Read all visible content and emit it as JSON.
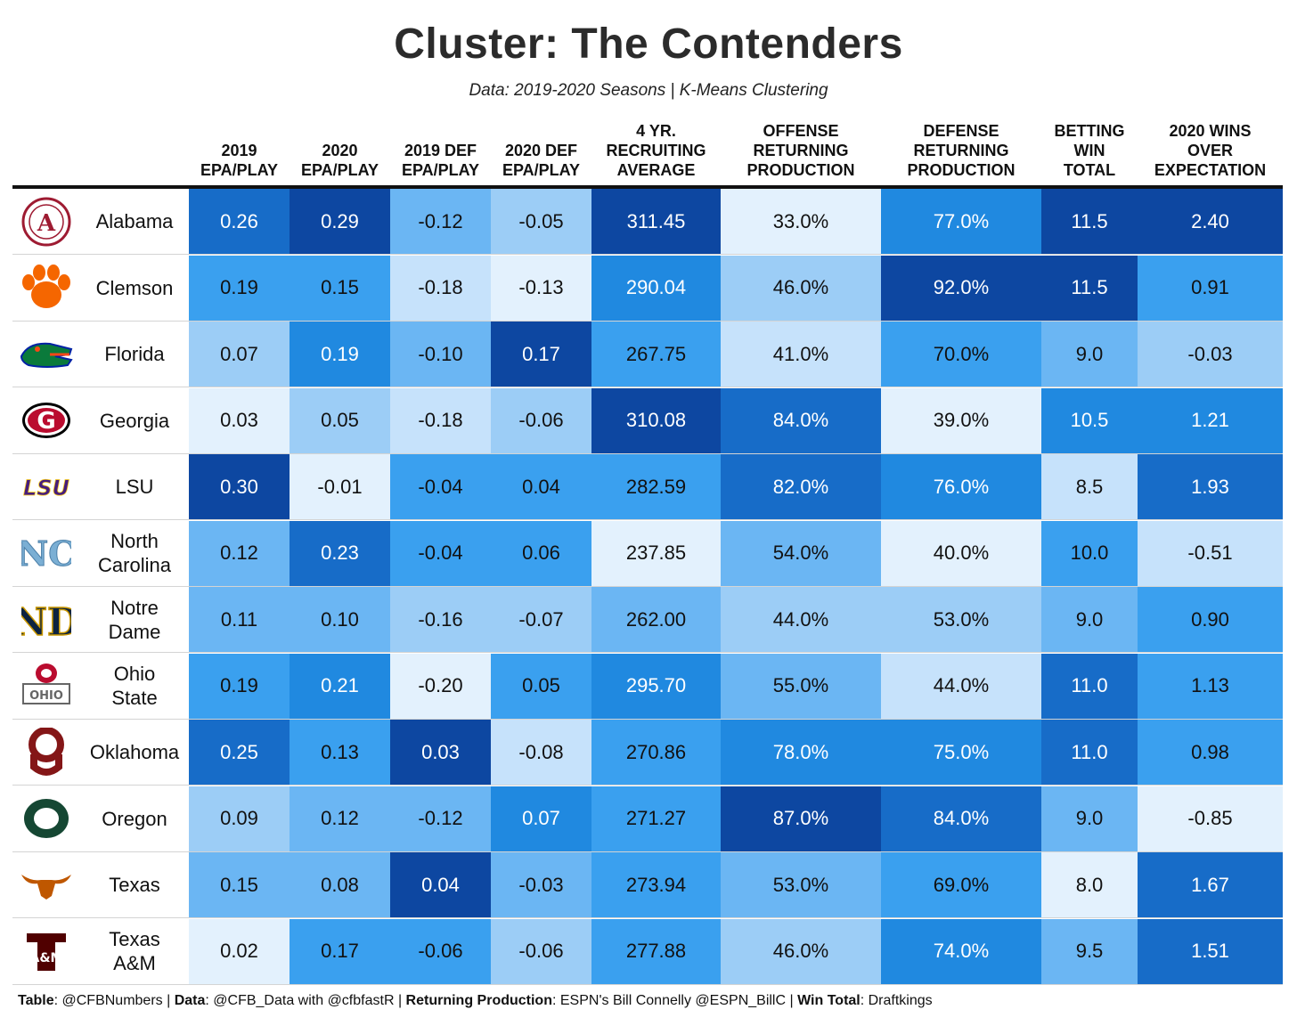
{
  "title": "Cluster: The Contenders",
  "subtitle": "Data: 2019-2020 Seasons | K-Means Clustering",
  "colors": {
    "lightest": "#e3f1fd",
    "light": "#c6e2fb",
    "light_mid": "#9ccdf6",
    "mid_light": "#6bb6f3",
    "mid": "#3aa0ef",
    "mid_dark": "#2089e0",
    "dark": "#176cc8",
    "darkest": "#0d47a1"
  },
  "chart_data": {
    "type": "table",
    "columns": [
      {
        "key": "epa19",
        "label": [
          "2019",
          "EPA/PLAY"
        ]
      },
      {
        "key": "epa20",
        "label": [
          "2020",
          "EPA/PLAY"
        ]
      },
      {
        "key": "def19",
        "label": [
          "2019 DEF",
          "EPA/PLAY"
        ]
      },
      {
        "key": "def20",
        "label": [
          "2020 DEF",
          "EPA/PLAY"
        ]
      },
      {
        "key": "recruit",
        "label": [
          "4 YR.",
          "RECRUITING",
          "AVERAGE"
        ]
      },
      {
        "key": "off_ret",
        "label": [
          "OFFENSE",
          "RETURNING",
          "PRODUCTION"
        ]
      },
      {
        "key": "def_ret",
        "label": [
          "DEFENSE",
          "RETURNING",
          "PRODUCTION"
        ]
      },
      {
        "key": "win_total",
        "label": [
          "BETTING",
          "WIN",
          "TOTAL"
        ]
      },
      {
        "key": "wins_over",
        "label": [
          "2020 WINS",
          "OVER",
          "EXPECTATION"
        ]
      }
    ],
    "rows": [
      {
        "team": [
          "Alabama"
        ],
        "logo": "alabama-a-logo",
        "values": [
          "0.26",
          "0.29",
          "-0.12",
          "-0.05",
          "311.45",
          "33.0%",
          "77.0%",
          "11.5",
          "2.40"
        ],
        "shade": [
          6,
          7,
          3,
          2,
          7,
          0,
          5,
          7,
          7
        ]
      },
      {
        "team": [
          "Clemson"
        ],
        "logo": "clemson-paw-logo",
        "values": [
          "0.19",
          "0.15",
          "-0.18",
          "-0.13",
          "290.04",
          "46.0%",
          "92.0%",
          "11.5",
          "0.91"
        ],
        "shade": [
          4,
          4,
          1,
          0,
          5,
          2,
          7,
          7,
          4
        ]
      },
      {
        "team": [
          "Florida"
        ],
        "logo": "florida-gator-logo",
        "values": [
          "0.07",
          "0.19",
          "-0.10",
          "0.17",
          "267.75",
          "41.0%",
          "70.0%",
          "9.0",
          "-0.03"
        ],
        "shade": [
          2,
          5,
          3,
          7,
          4,
          1,
          4,
          3,
          2
        ]
      },
      {
        "team": [
          "Georgia"
        ],
        "logo": "georgia-g-logo",
        "values": [
          "0.03",
          "0.05",
          "-0.18",
          "-0.06",
          "310.08",
          "84.0%",
          "39.0%",
          "10.5",
          "1.21"
        ],
        "shade": [
          0,
          2,
          1,
          2,
          7,
          6,
          0,
          5,
          5
        ]
      },
      {
        "team": [
          "LSU"
        ],
        "logo": "lsu-wordmark-logo",
        "values": [
          "0.30",
          "-0.01",
          "-0.04",
          "0.04",
          "282.59",
          "82.0%",
          "76.0%",
          "8.5",
          "1.93"
        ],
        "shade": [
          7,
          0,
          4,
          4,
          4,
          6,
          5,
          1,
          6
        ]
      },
      {
        "team": [
          "North",
          "Carolina"
        ],
        "logo": "unc-nc-logo",
        "values": [
          "0.12",
          "0.23",
          "-0.04",
          "0.06",
          "237.85",
          "54.0%",
          "40.0%",
          "10.0",
          "-0.51"
        ],
        "shade": [
          3,
          6,
          4,
          4,
          0,
          3,
          0,
          4,
          1
        ]
      },
      {
        "team": [
          "Notre",
          "Dame"
        ],
        "logo": "notre-dame-nd-logo",
        "values": [
          "0.11",
          "0.10",
          "-0.16",
          "-0.07",
          "262.00",
          "44.0%",
          "53.0%",
          "9.0",
          "0.90"
        ],
        "shade": [
          3,
          3,
          2,
          2,
          3,
          2,
          2,
          3,
          4
        ]
      },
      {
        "team": [
          "Ohio",
          "State"
        ],
        "logo": "ohio-state-logo",
        "values": [
          "0.19",
          "0.21",
          "-0.20",
          "0.05",
          "295.70",
          "55.0%",
          "44.0%",
          "11.0",
          "1.13"
        ],
        "shade": [
          4,
          5,
          0,
          4,
          5,
          3,
          1,
          6,
          4
        ]
      },
      {
        "team": [
          "Oklahoma"
        ],
        "logo": "oklahoma-ou-logo",
        "values": [
          "0.25",
          "0.13",
          "0.03",
          "-0.08",
          "270.86",
          "78.0%",
          "75.0%",
          "11.0",
          "0.98"
        ],
        "shade": [
          6,
          4,
          7,
          1,
          4,
          5,
          5,
          6,
          4
        ]
      },
      {
        "team": [
          "Oregon"
        ],
        "logo": "oregon-o-logo",
        "values": [
          "0.09",
          "0.12",
          "-0.12",
          "0.07",
          "271.27",
          "87.0%",
          "84.0%",
          "9.0",
          "-0.85"
        ],
        "shade": [
          2,
          3,
          3,
          5,
          4,
          7,
          6,
          3,
          0
        ]
      },
      {
        "team": [
          "Texas"
        ],
        "logo": "texas-longhorn-logo",
        "values": [
          "0.15",
          "0.08",
          "0.04",
          "-0.03",
          "273.94",
          "53.0%",
          "69.0%",
          "8.0",
          "1.67"
        ],
        "shade": [
          3,
          3,
          7,
          3,
          4,
          3,
          4,
          0,
          6
        ]
      },
      {
        "team": [
          "Texas",
          "A&M"
        ],
        "logo": "texas-am-logo",
        "values": [
          "0.02",
          "0.17",
          "-0.06",
          "-0.06",
          "277.88",
          "46.0%",
          "74.0%",
          "9.5",
          "1.51"
        ],
        "shade": [
          0,
          4,
          4,
          2,
          4,
          2,
          5,
          3,
          6
        ]
      }
    ]
  },
  "footer": [
    {
      "bold": "Table",
      "text": ": @CFBNumbers | "
    },
    {
      "bold": "Data",
      "text": ": @CFB_Data with @cfbfastR | "
    },
    {
      "bold": "Returning Production",
      "text": ": ESPN's Bill Connelly @ESPN_BillC | "
    },
    {
      "bold": "Win Total",
      "text": ": Draftkings"
    }
  ]
}
